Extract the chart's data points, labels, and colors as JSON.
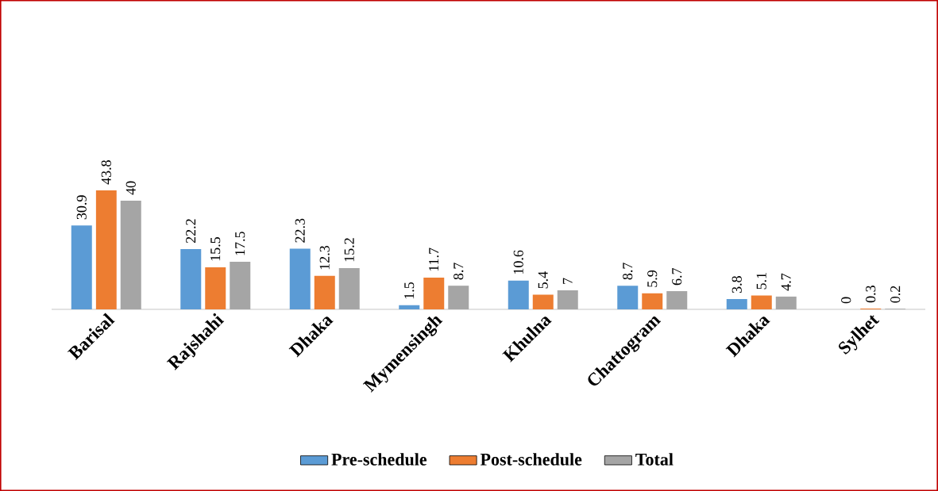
{
  "chart_data": {
    "type": "bar",
    "categories": [
      "Barisal",
      "Rajshahi",
      "Dhaka",
      "Mymensingh",
      "Khulna",
      "Chattogram",
      "Dhaka",
      "Sylhet"
    ],
    "series": [
      {
        "name": "Pre-schedule",
        "color": "#5b9bd5",
        "values": [
          30.9,
          22.2,
          22.3,
          1.5,
          10.6,
          8.7,
          3.8,
          0
        ]
      },
      {
        "name": "Post-schedule",
        "color": "#ed7d31",
        "values": [
          43.8,
          15.5,
          12.3,
          11.7,
          5.4,
          5.9,
          5.1,
          0.3
        ]
      },
      {
        "name": "Total",
        "color": "#a5a5a5",
        "values": [
          40,
          17.5,
          15.2,
          8.7,
          7,
          6.7,
          4.7,
          0.2
        ]
      }
    ],
    "data_labels": true,
    "legend": "bottom"
  }
}
